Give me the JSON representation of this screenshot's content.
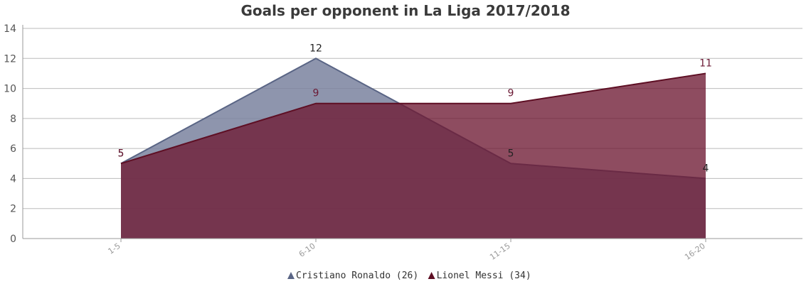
{
  "chart_data": {
    "type": "area",
    "title": "Goals per opponent in La Liga 2017/2018",
    "categories": [
      "1-5",
      "6-10",
      "11-15",
      "16-20"
    ],
    "ylim": [
      0,
      14
    ],
    "yticks": [
      0,
      2,
      4,
      6,
      8,
      10,
      12,
      14
    ],
    "grid": true,
    "legend_position": "bottom",
    "series": [
      {
        "name": "Cristiano Ronaldo (26)",
        "values": [
          5,
          12,
          5,
          4
        ],
        "line_color": "#5a6585",
        "fill_color": "#7a829f",
        "label_color": "#222222"
      },
      {
        "name": "Lionel Messi (34)",
        "values": [
          5,
          9,
          9,
          11
        ],
        "line_color": "#5e0f24",
        "fill_color": "#6e1a33",
        "label_color": "#6b1a35"
      }
    ]
  }
}
